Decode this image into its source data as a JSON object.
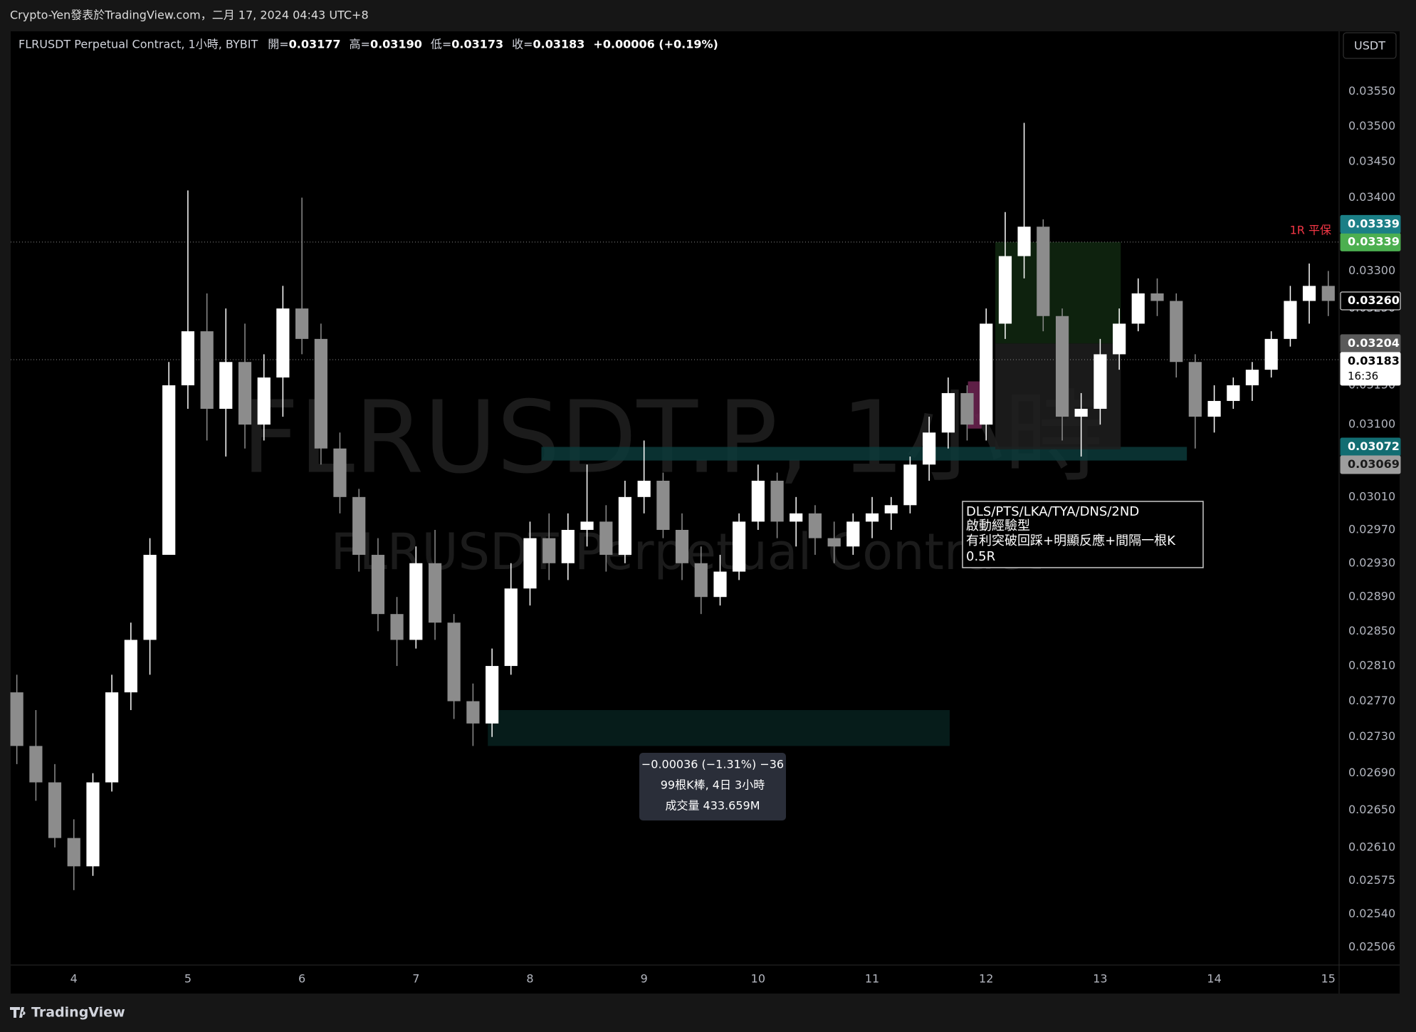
{
  "page": {
    "header": "Crypto-Yen發表於TradingView.com，二月 17, 2024 04:43 UTC+8",
    "currency_button": "USDT",
    "footer_logo": "TradingView"
  },
  "chart_data": {
    "type": "candlestick",
    "legend": {
      "symbol": "FLRUSDT Perpetual Contract, 1小時, BYBIT",
      "ohlc": [
        {
          "label": "開=",
          "value": "0.03177"
        },
        {
          "label": "高=",
          "value": "0.03190"
        },
        {
          "label": "低=",
          "value": "0.03173"
        },
        {
          "label": "收=",
          "value": "0.03183"
        }
      ],
      "change": "+0.00006 (+0.19%)"
    },
    "watermark": [
      "FLRUSDT.P, 1小時",
      "FLRUSDT Perpetual Contract"
    ],
    "log_scale": true,
    "grid": false,
    "up_color": "#ffffff",
    "down_color": "#8c8c8c",
    "xlim": [
      3.446,
      15.095
    ],
    "xticks": [
      4,
      5,
      6,
      7,
      8,
      9,
      10,
      11,
      12,
      13,
      14,
      15
    ],
    "ylim": [
      0.02488,
      0.03638
    ],
    "yticks": [
      {
        "value": 0.0355,
        "label": "0.03550"
      },
      {
        "value": 0.035,
        "label": "0.03500"
      },
      {
        "value": 0.0345,
        "label": "0.03450"
      },
      {
        "value": 0.034,
        "label": "0.03400"
      },
      {
        "value": 0.033,
        "label": "0.03300"
      },
      {
        "value": 0.0325,
        "label": "0.03250"
      },
      {
        "value": 0.0315,
        "label": "0.03150"
      },
      {
        "value": 0.031,
        "label": "0.03100"
      },
      {
        "value": 0.0301,
        "label": "0.03010"
      },
      {
        "value": 0.0297,
        "label": "0.02970"
      },
      {
        "value": 0.0293,
        "label": "0.02930"
      },
      {
        "value": 0.0289,
        "label": "0.02890"
      },
      {
        "value": 0.0285,
        "label": "0.02850"
      },
      {
        "value": 0.0281,
        "label": "0.02810"
      },
      {
        "value": 0.0277,
        "label": "0.02770"
      },
      {
        "value": 0.0273,
        "label": "0.02730"
      },
      {
        "value": 0.0269,
        "label": "0.02690"
      },
      {
        "value": 0.0265,
        "label": "0.02650"
      },
      {
        "value": 0.0261,
        "label": "0.02610"
      },
      {
        "value": 0.02575,
        "label": "0.02575"
      },
      {
        "value": 0.0254,
        "label": "0.02540"
      },
      {
        "value": 0.02506,
        "label": "0.02506"
      }
    ],
    "candles": [
      {
        "x": 3.5,
        "open": 0.0278,
        "high": 0.028,
        "low": 0.027,
        "close": 0.0272
      },
      {
        "x": 3.667,
        "open": 0.0272,
        "high": 0.0276,
        "low": 0.0266,
        "close": 0.0268
      },
      {
        "x": 3.833,
        "open": 0.0268,
        "high": 0.027,
        "low": 0.0261,
        "close": 0.0262
      },
      {
        "x": 4.0,
        "open": 0.0262,
        "high": 0.0264,
        "low": 0.02565,
        "close": 0.0259
      },
      {
        "x": 4.167,
        "open": 0.0259,
        "high": 0.0269,
        "low": 0.0258,
        "close": 0.0268
      },
      {
        "x": 4.333,
        "open": 0.0268,
        "high": 0.028,
        "low": 0.0267,
        "close": 0.0278
      },
      {
        "x": 4.5,
        "open": 0.0278,
        "high": 0.0286,
        "low": 0.0276,
        "close": 0.0284
      },
      {
        "x": 4.667,
        "open": 0.0284,
        "high": 0.0296,
        "low": 0.028,
        "close": 0.0294
      },
      {
        "x": 4.833,
        "open": 0.0294,
        "high": 0.0318,
        "low": 0.0294,
        "close": 0.0315
      },
      {
        "x": 5.0,
        "open": 0.0315,
        "high": 0.0341,
        "low": 0.0312,
        "close": 0.0322
      },
      {
        "x": 5.167,
        "open": 0.0322,
        "high": 0.0327,
        "low": 0.0308,
        "close": 0.0312
      },
      {
        "x": 5.333,
        "open": 0.0312,
        "high": 0.0325,
        "low": 0.0306,
        "close": 0.0318
      },
      {
        "x": 5.5,
        "open": 0.0318,
        "high": 0.0323,
        "low": 0.0307,
        "close": 0.031
      },
      {
        "x": 5.667,
        "open": 0.031,
        "high": 0.0319,
        "low": 0.0308,
        "close": 0.0316
      },
      {
        "x": 5.833,
        "open": 0.0316,
        "high": 0.0328,
        "low": 0.0311,
        "close": 0.0325
      },
      {
        "x": 6.0,
        "open": 0.0325,
        "high": 0.034,
        "low": 0.0319,
        "close": 0.0321
      },
      {
        "x": 6.167,
        "open": 0.0321,
        "high": 0.0323,
        "low": 0.0305,
        "close": 0.0307
      },
      {
        "x": 6.333,
        "open": 0.0307,
        "high": 0.0309,
        "low": 0.0299,
        "close": 0.0301
      },
      {
        "x": 6.5,
        "open": 0.0301,
        "high": 0.0302,
        "low": 0.0292,
        "close": 0.0294
      },
      {
        "x": 6.667,
        "open": 0.0294,
        "high": 0.0296,
        "low": 0.0285,
        "close": 0.0287
      },
      {
        "x": 6.833,
        "open": 0.0287,
        "high": 0.0289,
        "low": 0.0281,
        "close": 0.0284
      },
      {
        "x": 7.0,
        "open": 0.0284,
        "high": 0.0295,
        "low": 0.0283,
        "close": 0.0293
      },
      {
        "x": 7.167,
        "open": 0.0293,
        "high": 0.0297,
        "low": 0.0284,
        "close": 0.0286
      },
      {
        "x": 7.333,
        "open": 0.0286,
        "high": 0.0287,
        "low": 0.0275,
        "close": 0.0277
      },
      {
        "x": 7.5,
        "open": 0.0277,
        "high": 0.0279,
        "low": 0.0272,
        "close": 0.02745
      },
      {
        "x": 7.667,
        "open": 0.02745,
        "high": 0.0283,
        "low": 0.0273,
        "close": 0.0281
      },
      {
        "x": 7.833,
        "open": 0.0281,
        "high": 0.0293,
        "low": 0.028,
        "close": 0.029
      },
      {
        "x": 8.0,
        "open": 0.029,
        "high": 0.0298,
        "low": 0.0288,
        "close": 0.0296
      },
      {
        "x": 8.167,
        "open": 0.0296,
        "high": 0.0299,
        "low": 0.0291,
        "close": 0.0293
      },
      {
        "x": 8.333,
        "open": 0.0293,
        "high": 0.0299,
        "low": 0.0291,
        "close": 0.0297
      },
      {
        "x": 8.5,
        "open": 0.0297,
        "high": 0.0305,
        "low": 0.0295,
        "close": 0.0298
      },
      {
        "x": 8.667,
        "open": 0.0298,
        "high": 0.03,
        "low": 0.0292,
        "close": 0.0294
      },
      {
        "x": 8.833,
        "open": 0.0294,
        "high": 0.0303,
        "low": 0.0293,
        "close": 0.0301
      },
      {
        "x": 9.0,
        "open": 0.0301,
        "high": 0.0308,
        "low": 0.0299,
        "close": 0.0303
      },
      {
        "x": 9.167,
        "open": 0.0303,
        "high": 0.0304,
        "low": 0.0296,
        "close": 0.0297
      },
      {
        "x": 9.333,
        "open": 0.0297,
        "high": 0.0299,
        "low": 0.0291,
        "close": 0.0293
      },
      {
        "x": 9.5,
        "open": 0.0293,
        "high": 0.0295,
        "low": 0.0287,
        "close": 0.0289
      },
      {
        "x": 9.667,
        "open": 0.0289,
        "high": 0.0294,
        "low": 0.0288,
        "close": 0.0292
      },
      {
        "x": 9.833,
        "open": 0.0292,
        "high": 0.0299,
        "low": 0.0291,
        "close": 0.0298
      },
      {
        "x": 10.0,
        "open": 0.0298,
        "high": 0.0305,
        "low": 0.0297,
        "close": 0.0303
      },
      {
        "x": 10.167,
        "open": 0.0303,
        "high": 0.0304,
        "low": 0.0296,
        "close": 0.0298
      },
      {
        "x": 10.333,
        "open": 0.0298,
        "high": 0.0301,
        "low": 0.0295,
        "close": 0.0299
      },
      {
        "x": 10.5,
        "open": 0.0299,
        "high": 0.03,
        "low": 0.0294,
        "close": 0.0296
      },
      {
        "x": 10.667,
        "open": 0.0296,
        "high": 0.0298,
        "low": 0.0293,
        "close": 0.0295
      },
      {
        "x": 10.833,
        "open": 0.0295,
        "high": 0.0299,
        "low": 0.0294,
        "close": 0.0298
      },
      {
        "x": 11.0,
        "open": 0.0298,
        "high": 0.0301,
        "low": 0.0296,
        "close": 0.0299
      },
      {
        "x": 11.167,
        "open": 0.0299,
        "high": 0.0301,
        "low": 0.0297,
        "close": 0.03
      },
      {
        "x": 11.333,
        "open": 0.03,
        "high": 0.0306,
        "low": 0.0299,
        "close": 0.0305
      },
      {
        "x": 11.5,
        "open": 0.0305,
        "high": 0.0311,
        "low": 0.0303,
        "close": 0.0309
      },
      {
        "x": 11.667,
        "open": 0.0309,
        "high": 0.0316,
        "low": 0.0307,
        "close": 0.0314
      },
      {
        "x": 11.833,
        "open": 0.0314,
        "high": 0.0315,
        "low": 0.0308,
        "close": 0.031
      },
      {
        "x": 12.0,
        "open": 0.031,
        "high": 0.0325,
        "low": 0.0308,
        "close": 0.0323
      },
      {
        "x": 12.167,
        "open": 0.0323,
        "high": 0.0338,
        "low": 0.0321,
        "close": 0.0332
      },
      {
        "x": 12.333,
        "open": 0.0332,
        "high": 0.03505,
        "low": 0.0329,
        "close": 0.0336
      },
      {
        "x": 12.5,
        "open": 0.0336,
        "high": 0.0337,
        "low": 0.0322,
        "close": 0.0324
      },
      {
        "x": 12.667,
        "open": 0.0324,
        "high": 0.0325,
        "low": 0.0308,
        "close": 0.0311
      },
      {
        "x": 12.833,
        "open": 0.0311,
        "high": 0.0314,
        "low": 0.0306,
        "close": 0.0312
      },
      {
        "x": 13.0,
        "open": 0.0312,
        "high": 0.0321,
        "low": 0.031,
        "close": 0.0319
      },
      {
        "x": 13.167,
        "open": 0.0319,
        "high": 0.0325,
        "low": 0.0317,
        "close": 0.0323
      },
      {
        "x": 13.333,
        "open": 0.0323,
        "high": 0.0329,
        "low": 0.0322,
        "close": 0.0327
      },
      {
        "x": 13.5,
        "open": 0.0327,
        "high": 0.0329,
        "low": 0.0324,
        "close": 0.0326
      },
      {
        "x": 13.667,
        "open": 0.0326,
        "high": 0.0327,
        "low": 0.0316,
        "close": 0.0318
      },
      {
        "x": 13.833,
        "open": 0.0318,
        "high": 0.0319,
        "low": 0.0307,
        "close": 0.0311
      },
      {
        "x": 14.0,
        "open": 0.0311,
        "high": 0.0315,
        "low": 0.0309,
        "close": 0.0313
      },
      {
        "x": 14.167,
        "open": 0.0313,
        "high": 0.0316,
        "low": 0.0312,
        "close": 0.0315
      },
      {
        "x": 14.333,
        "open": 0.0315,
        "high": 0.0318,
        "low": 0.0313,
        "close": 0.0317
      },
      {
        "x": 14.5,
        "open": 0.0317,
        "high": 0.0322,
        "low": 0.0316,
        "close": 0.0321
      },
      {
        "x": 14.667,
        "open": 0.0321,
        "high": 0.0328,
        "low": 0.032,
        "close": 0.0326
      },
      {
        "x": 14.833,
        "open": 0.0326,
        "high": 0.0331,
        "low": 0.0323,
        "close": 0.0328
      },
      {
        "x": 15.0,
        "open": 0.0328,
        "high": 0.033,
        "low": 0.0324,
        "close": 0.0326
      }
    ],
    "zones": [
      {
        "x0": 8.1,
        "x1": 13.76,
        "y0": 0.03055,
        "y1": 0.03072,
        "color": "#0c3a39"
      },
      {
        "x0": 7.63,
        "x1": 11.68,
        "y0": 0.0272,
        "y1": 0.0276,
        "color": "#07211e"
      },
      {
        "x0": 12.08,
        "x1": 13.18,
        "y0": 0.03204,
        "y1": 0.03339,
        "color": "#102810"
      },
      {
        "x0": 12.08,
        "x1": 13.18,
        "y0": 0.03069,
        "y1": 0.03204,
        "color": "#1f1f1f"
      },
      {
        "x0": 11.84,
        "x1": 11.96,
        "y0": 0.03095,
        "y1": 0.03155,
        "color": "#6e2452"
      }
    ],
    "price_labels": [
      {
        "value": 0.03339,
        "label": "0.03339",
        "bg": "#4caf50",
        "fg": "#ffffff",
        "line": true
      },
      {
        "value": 0.03339,
        "label": "0.03339",
        "bg": "#1b7f86",
        "fg": "#ffffff"
      },
      {
        "value": 0.0326,
        "label": "0.03260",
        "bg": "#000000",
        "fg": "#ffffff"
      },
      {
        "value": 0.03204,
        "label": "0.03204",
        "bg": "#5a5a5a",
        "fg": "#ffffff"
      },
      {
        "value": 0.03183,
        "label": "0.03183",
        "time": "16:36",
        "bg": "#ffffff",
        "fg": "#000000",
        "line": true
      },
      {
        "value": 0.03072,
        "label": "0.03072",
        "bg": "#126d72",
        "fg": "#ffffff"
      },
      {
        "value": 0.03069,
        "label": "0.03069",
        "bg": "#9e9e9e",
        "fg": "#1a1a1a"
      }
    ],
    "annotations": {
      "risk_note": "1R 平保",
      "setup": [
        "DLS/PTS/LKA/TYA/DNS/2ND",
        "啟動經驗型",
        "有利突破回踩+明顯反應+間隔一根K",
        "0.5R"
      ],
      "measure": [
        "−0.00036 (−1.31%) −36",
        "99根K棒, 4日 3小時",
        "成交量 433.659M"
      ]
    }
  }
}
